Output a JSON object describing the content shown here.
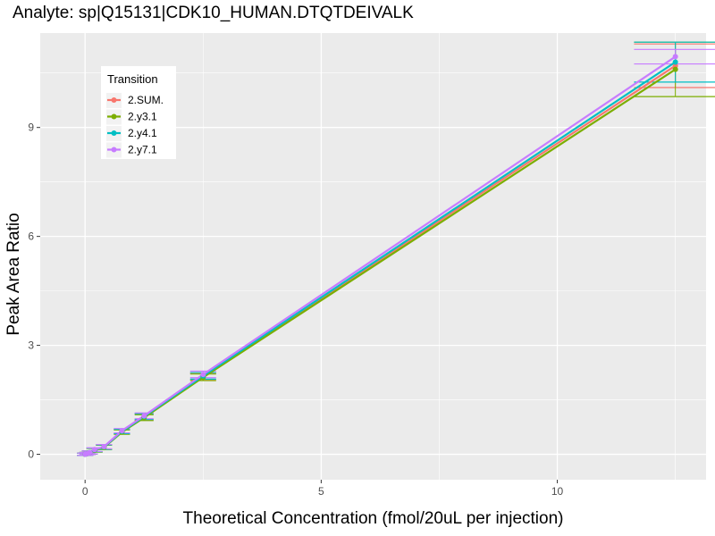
{
  "chart_data": {
    "type": "line",
    "title": "Analyte: sp|Q15131|CDK10_HUMAN.DTQTDEIVALK",
    "xlabel": "Theoretical Concentration (fmol/20uL per injection)",
    "ylabel": "Peak Area Ratio",
    "xlim": [
      -0.95,
      13.15
    ],
    "ylim": [
      -0.7,
      11.6
    ],
    "x_ticks": [
      0,
      5,
      10
    ],
    "y_ticks": [
      0,
      3,
      6,
      9
    ],
    "x_tick_labels": [
      "0",
      "5",
      "10"
    ],
    "y_tick_labels": [
      "0",
      "3",
      "6",
      "9"
    ],
    "grid": true,
    "legend": {
      "title": "Transition",
      "position": "top-left"
    },
    "x": [
      0,
      0.05,
      0.1,
      0.2,
      0.4,
      0.78,
      1.25,
      2.5,
      12.5
    ],
    "series": [
      {
        "name": "2.SUM.",
        "color": "#F8766D",
        "values": [
          0.0,
          0.02,
          0.05,
          0.12,
          0.2,
          0.63,
          1.03,
          2.15,
          10.7
        ],
        "errors": [
          0.03,
          0.03,
          0.04,
          0.05,
          0.06,
          0.06,
          0.08,
          0.09,
          0.6
        ]
      },
      {
        "name": "2.y3.1",
        "color": "#7CAE00",
        "values": [
          0.0,
          0.02,
          0.05,
          0.11,
          0.19,
          0.61,
          1.01,
          2.12,
          10.6
        ],
        "errors": [
          0.03,
          0.03,
          0.04,
          0.05,
          0.06,
          0.06,
          0.08,
          0.09,
          0.75
        ]
      },
      {
        "name": "2.y4.1",
        "color": "#00BFC4",
        "values": [
          0.0,
          0.02,
          0.05,
          0.12,
          0.2,
          0.63,
          1.04,
          2.16,
          10.8
        ],
        "errors": [
          0.03,
          0.03,
          0.04,
          0.05,
          0.06,
          0.06,
          0.08,
          0.09,
          0.55
        ]
      },
      {
        "name": "2.y7.1",
        "color": "#C77CFF",
        "values": [
          0.0,
          0.02,
          0.05,
          0.13,
          0.21,
          0.65,
          1.06,
          2.2,
          10.95
        ],
        "errors": [
          0.03,
          0.03,
          0.04,
          0.05,
          0.06,
          0.06,
          0.08,
          0.09,
          0.2
        ]
      }
    ]
  }
}
